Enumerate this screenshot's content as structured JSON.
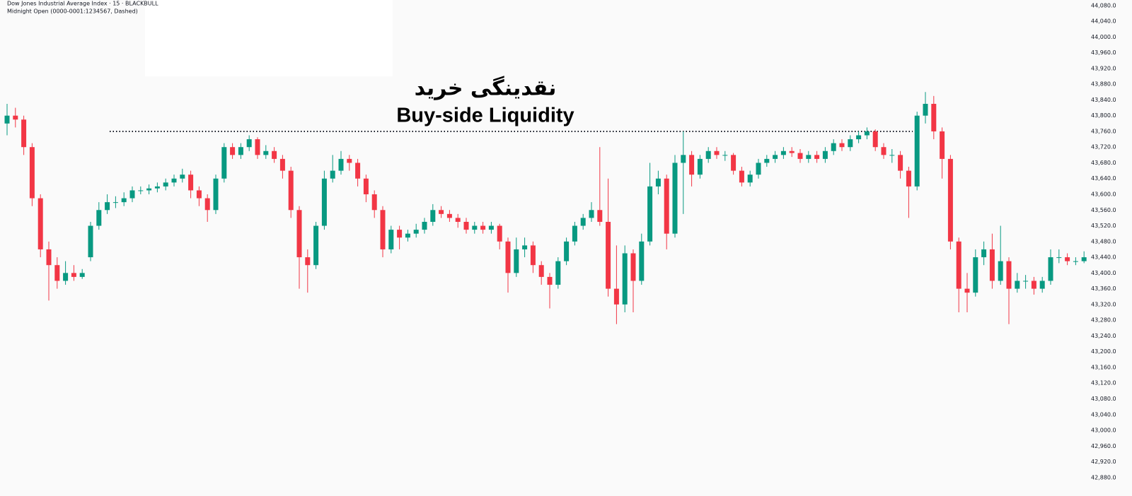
{
  "chart_data": {
    "type": "candlestick",
    "title": "Dow Jones Industrial Average Index · 15 · BLACKBULL",
    "subtitle": "Midnight Open (0000-0001:1234567, Dashed)",
    "annotation_fa": "نقدینگی خرید",
    "annotation_en": "Buy-side Liquidity",
    "level": 43760,
    "level_color": "#131722",
    "up_color": "#089981",
    "down_color": "#f23645",
    "ylim": [
      42833,
      44094
    ],
    "yticks": [
      {
        "value": 42880,
        "label": "42,880.0"
      },
      {
        "value": 42920,
        "label": "42,920.0"
      },
      {
        "value": 42960,
        "label": "42,960.0"
      },
      {
        "value": 43000,
        "label": "43,000.0"
      },
      {
        "value": 43040,
        "label": "43,040.0"
      },
      {
        "value": 43080,
        "label": "43,080.0"
      },
      {
        "value": 43120,
        "label": "43,120.0"
      },
      {
        "value": 43160,
        "label": "43,160.0"
      },
      {
        "value": 43200,
        "label": "43,200.0"
      },
      {
        "value": 43240,
        "label": "43,240.0"
      },
      {
        "value": 43280,
        "label": "43,280.0"
      },
      {
        "value": 43320,
        "label": "43,320.0"
      },
      {
        "value": 43360,
        "label": "43,360.0"
      },
      {
        "value": 43400,
        "label": "43,400.0"
      },
      {
        "value": 43440,
        "label": "43,440.0"
      },
      {
        "value": 43480,
        "label": "43,480.0"
      },
      {
        "value": 43520,
        "label": "43,520.0"
      },
      {
        "value": 43560,
        "label": "43,560.0"
      },
      {
        "value": 43600,
        "label": "43,600.0"
      },
      {
        "value": 43640,
        "label": "43,640.0"
      },
      {
        "value": 43680,
        "label": "43,680.0"
      },
      {
        "value": 43720,
        "label": "43,720.0"
      },
      {
        "value": 43760,
        "label": "43,760.0"
      },
      {
        "value": 43800,
        "label": "43,800.0"
      },
      {
        "value": 43840,
        "label": "43,840.0"
      },
      {
        "value": 43880,
        "label": "43,880.0"
      },
      {
        "value": 43920,
        "label": "43,920.0"
      },
      {
        "value": 43960,
        "label": "43,960.0"
      },
      {
        "value": 44000,
        "label": "44,000.0"
      },
      {
        "value": 44040,
        "label": "44,040.0"
      },
      {
        "value": 44080,
        "label": "44,080.0"
      }
    ],
    "open": [
      43780,
      43800,
      43790,
      43720,
      43590,
      43460,
      43420,
      43380,
      43400,
      43390,
      43440,
      43520,
      43560,
      43580,
      43580,
      43590,
      43610,
      43610,
      43615,
      43620,
      43630,
      43640,
      43650,
      43610,
      43590,
      43560,
      43640,
      43720,
      43700,
      43720,
      43740,
      43700,
      43710,
      43690,
      43660,
      43560,
      43440,
      43420,
      43520,
      43640,
      43660,
      43690,
      43680,
      43640,
      43600,
      43560,
      43460,
      43510,
      43490,
      43500,
      43510,
      43530,
      43560,
      43550,
      43540,
      43530,
      43510,
      43520,
      43510,
      43520,
      43480,
      43400,
      43460,
      43470,
      43420,
      43390,
      43370,
      43430,
      43480,
      43520,
      43540,
      43560,
      43530,
      43360,
      43320,
      43450,
      43380,
      43480,
      43620,
      43640,
      43500,
      43680,
      43700,
      43650,
      43690,
      43710,
      43700,
      43700,
      43660,
      43630,
      43650,
      43680,
      43690,
      43700,
      43710,
      43705,
      43690,
      43700,
      43690,
      43710,
      43730,
      43720,
      43740,
      43750,
      43760,
      43720,
      43700,
      43700,
      43660,
      43620,
      43800,
      43830,
      43760,
      43690,
      43480,
      43360,
      43350,
      43440,
      43460,
      43380,
      43430,
      43360,
      43380,
      43380,
      43360,
      43380,
      43440,
      43440,
      43430,
      43430
    ],
    "high": [
      43830,
      43820,
      43800,
      43730,
      43600,
      43480,
      43440,
      43430,
      43420,
      43410,
      43530,
      43580,
      43600,
      43595,
      43605,
      43620,
      43620,
      43625,
      43630,
      43640,
      43650,
      43665,
      43660,
      43620,
      43600,
      43650,
      43730,
      43730,
      43730,
      43750,
      43745,
      43725,
      43720,
      43700,
      43670,
      43570,
      43460,
      43530,
      43660,
      43700,
      43710,
      43700,
      43690,
      43650,
      43610,
      43570,
      43520,
      43520,
      43510,
      43525,
      43540,
      43575,
      43570,
      43560,
      43550,
      43540,
      43530,
      43530,
      43530,
      43525,
      43490,
      43490,
      43490,
      43480,
      43430,
      43400,
      43440,
      43490,
      43530,
      43550,
      43580,
      43720,
      43640,
      43470,
      43470,
      43460,
      43500,
      43680,
      43660,
      43650,
      43700,
      43760,
      43710,
      43700,
      43720,
      43720,
      43710,
      43705,
      43670,
      43660,
      43690,
      43700,
      43710,
      43720,
      43720,
      43715,
      43710,
      43710,
      43720,
      43740,
      43740,
      43750,
      43760,
      43770,
      43765,
      43730,
      43715,
      43710,
      43670,
      43810,
      43860,
      43850,
      43770,
      43700,
      43490,
      43400,
      43460,
      43480,
      43500,
      43520,
      43440,
      43400,
      43395,
      43390,
      43390,
      43460,
      43460,
      43450,
      43440,
      43455
    ],
    "low": [
      43750,
      43770,
      43700,
      43570,
      43440,
      43330,
      43360,
      43370,
      43380,
      43385,
      43430,
      43510,
      43550,
      43565,
      43570,
      43580,
      43600,
      43600,
      43605,
      43610,
      43620,
      43630,
      43590,
      43570,
      43530,
      43550,
      43630,
      43690,
      43690,
      43710,
      43690,
      43690,
      43680,
      43640,
      43540,
      43360,
      43350,
      43410,
      43510,
      43630,
      43650,
      43660,
      43620,
      43580,
      43540,
      43440,
      43450,
      43460,
      43480,
      43490,
      43500,
      43520,
      43540,
      43530,
      43515,
      43500,
      43500,
      43500,
      43500,
      43460,
      43350,
      43390,
      43440,
      43400,
      43370,
      43310,
      43360,
      43420,
      43470,
      43510,
      43530,
      43520,
      43340,
      43270,
      43300,
      43300,
      43370,
      43470,
      43600,
      43460,
      43490,
      43550,
      43620,
      43640,
      43680,
      43690,
      43685,
      43650,
      43620,
      43620,
      43640,
      43670,
      43680,
      43690,
      43695,
      43680,
      43680,
      43680,
      43680,
      43700,
      43710,
      43710,
      43730,
      43740,
      43710,
      43690,
      43680,
      43640,
      43540,
      43610,
      43780,
      43740,
      43640,
      43460,
      43300,
      43300,
      43340,
      43420,
      43360,
      43370,
      43270,
      43350,
      43360,
      43345,
      43350,
      43370,
      43425,
      43420,
      43420,
      43425
    ],
    "close": [
      43800,
      43790,
      43720,
      43590,
      43460,
      43420,
      43380,
      43400,
      43390,
      43400,
      43520,
      43560,
      43580,
      43580,
      43590,
      43610,
      43610,
      43615,
      43620,
      43630,
      43640,
      43650,
      43610,
      43590,
      43560,
      43640,
      43720,
      43700,
      43720,
      43740,
      43700,
      43710,
      43690,
      43660,
      43560,
      43440,
      43420,
      43520,
      43640,
      43660,
      43690,
      43680,
      43640,
      43600,
      43560,
      43460,
      43510,
      43490,
      43500,
      43510,
      43530,
      43560,
      43550,
      43540,
      43530,
      43510,
      43520,
      43510,
      43520,
      43480,
      43400,
      43460,
      43470,
      43420,
      43390,
      43370,
      43430,
      43480,
      43520,
      43540,
      43560,
      43530,
      43360,
      43320,
      43450,
      43380,
      43480,
      43620,
      43640,
      43500,
      43680,
      43700,
      43650,
      43690,
      43710,
      43700,
      43700,
      43660,
      43630,
      43650,
      43680,
      43690,
      43700,
      43710,
      43705,
      43690,
      43700,
      43690,
      43710,
      43730,
      43720,
      43740,
      43750,
      43760,
      43720,
      43700,
      43700,
      43660,
      43620,
      43800,
      43830,
      43760,
      43690,
      43480,
      43360,
      43350,
      43440,
      43460,
      43380,
      43430,
      43360,
      43380,
      43380,
      43360,
      43380,
      43440,
      43440,
      43430,
      43430,
      43440
    ]
  }
}
